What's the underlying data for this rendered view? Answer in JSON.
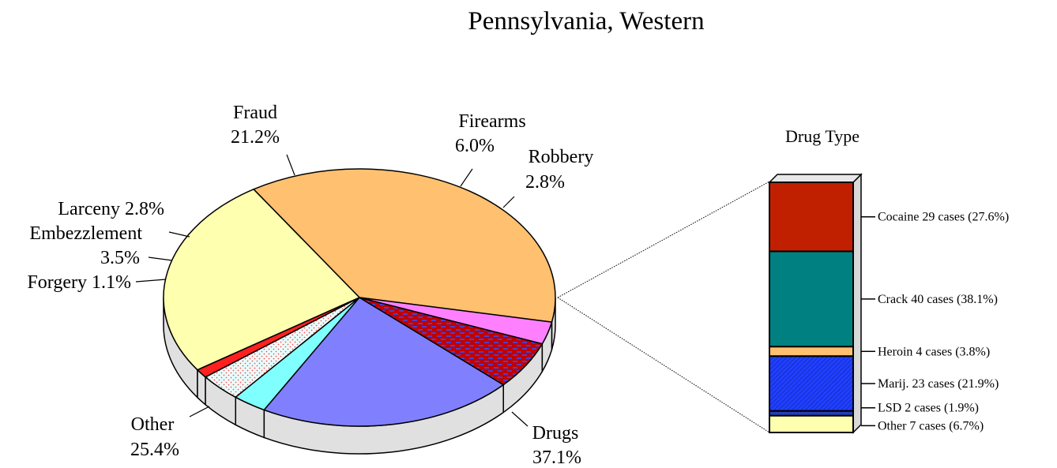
{
  "chart_data": [
    {
      "type": "pie",
      "title": "Pennsylvania, Western",
      "slices": [
        {
          "name": "Drugs",
          "value": 37.1,
          "label": "Drugs",
          "pct_text": "37.1%",
          "color": "#FFC070"
        },
        {
          "name": "Other",
          "value": 25.4,
          "label": "Other",
          "pct_text": "25.4%",
          "color": "#FFFFB0"
        },
        {
          "name": "Forgery",
          "value": 1.1,
          "label": "Forgery 1.1%",
          "pct_text": "",
          "color": "#FF2020"
        },
        {
          "name": "Embezzlement",
          "value": 3.5,
          "label": "Embezzlement",
          "pct_text": "3.5%",
          "color": "#E8FFFF"
        },
        {
          "name": "Larceny",
          "value": 2.8,
          "label": "Larceny 2.8%",
          "pct_text": "",
          "color": "#80FFFF"
        },
        {
          "name": "Fraud",
          "value": 21.2,
          "label": "Fraud",
          "pct_text": "21.2%",
          "color": "#8080FF"
        },
        {
          "name": "Firearms",
          "value": 6.0,
          "label": "Firearms",
          "pct_text": "6.0%",
          "color": "#C00000"
        },
        {
          "name": "Robbery",
          "value": 2.8,
          "label": "Robbery",
          "pct_text": "2.8%",
          "color": "#FF80FF"
        }
      ]
    },
    {
      "type": "bar",
      "stacked": true,
      "title": "Drug Type",
      "categories": [
        "Cocaine",
        "Crack",
        "Heroin",
        "Marij.",
        "LSD",
        "Other"
      ],
      "values": [
        27.6,
        38.1,
        3.8,
        21.9,
        1.9,
        6.7
      ],
      "cases": [
        29,
        40,
        4,
        23,
        2,
        7
      ],
      "labels": [
        "Cocaine 29 cases (27.6%)",
        "Crack 40 cases (38.1%)",
        "Heroin 4 cases (3.8%)",
        "Marij. 23 cases (21.9%)",
        "LSD 2 cases (1.9%)",
        "Other  7 cases (6.7%)"
      ],
      "colors": [
        "#C02000",
        "#008080",
        "#FFC070",
        "#2040FF",
        "#2040C0",
        "#FFFFB0"
      ]
    }
  ]
}
